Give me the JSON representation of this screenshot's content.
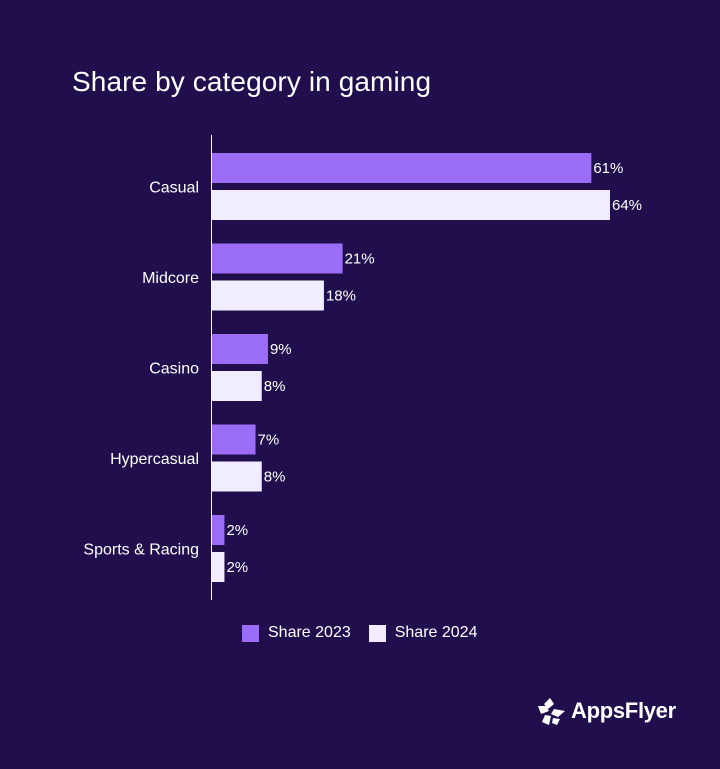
{
  "chart_data": {
    "type": "bar",
    "orientation": "horizontal",
    "title": "Share by category in gaming",
    "categories": [
      "Casual",
      "Midcore",
      "Casino",
      "Hypercasual",
      "Sports & Racing"
    ],
    "series": [
      {
        "name": "Share 2023",
        "values": [
          61,
          21,
          9,
          7,
          2
        ],
        "labels": [
          "61%",
          "21%",
          "9%",
          "7%",
          "2%"
        ],
        "color": "#9b6cf6"
      },
      {
        "name": "Share 2024",
        "values": [
          64,
          18,
          8,
          8,
          2
        ],
        "labels": [
          "64%",
          "18%",
          "8%",
          "8%",
          "2%"
        ],
        "color": "#f1ecff"
      }
    ],
    "xlim": [
      0,
      64
    ],
    "grid": false,
    "legend": "bottom"
  },
  "colors": {
    "background": "#210f4d",
    "axis": "#ffffff"
  },
  "brand": {
    "name": "AppsFlyer",
    "icon": "appsflyer-logo-icon"
  }
}
